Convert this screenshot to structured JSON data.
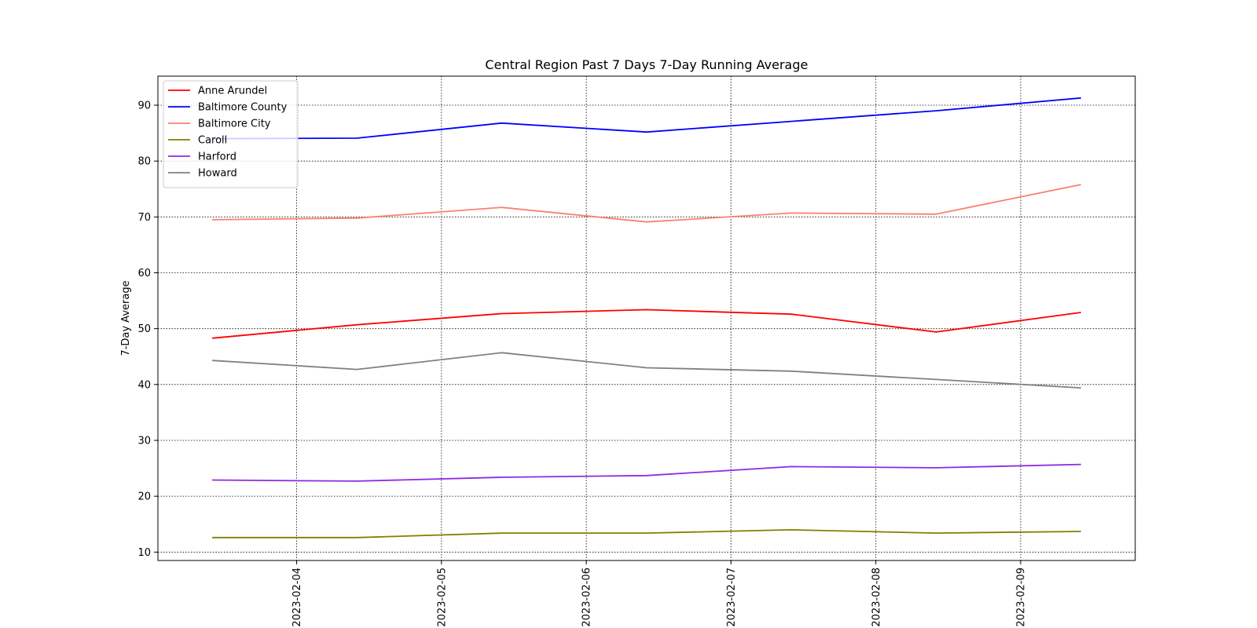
{
  "chart_data": {
    "type": "line",
    "title": "Central Region Past 7 Days 7-Day Running Average",
    "xlabel": "",
    "ylabel": "7-Day Average",
    "x": [
      "2023-02-03 10:00",
      "2023-02-04 10:00",
      "2023-02-05 10:00",
      "2023-02-06 10:00",
      "2023-02-07 10:00",
      "2023-02-08 10:00",
      "2023-02-09 10:00"
    ],
    "xticks": [
      "2023-02-04",
      "2023-02-05",
      "2023-02-06",
      "2023-02-07",
      "2023-02-08",
      "2023-02-09"
    ],
    "xlim": [
      "2023-02-03 01:00",
      "2023-02-09 19:00"
    ],
    "ylim": [
      8.5,
      95.2
    ],
    "yticks": [
      10,
      20,
      30,
      40,
      50,
      60,
      70,
      80,
      90
    ],
    "grid": true,
    "grid_style": "dotted",
    "legend_position": "upper-left",
    "series": [
      {
        "name": "Anne Arundel",
        "color": "#ff0000",
        "values": [
          48.3,
          50.7,
          52.7,
          53.4,
          52.6,
          49.4,
          52.9
        ]
      },
      {
        "name": "Baltimore County",
        "color": "#0000ff",
        "values": [
          84.0,
          84.1,
          86.8,
          85.2,
          87.1,
          89.0,
          91.3
        ]
      },
      {
        "name": "Baltimore City",
        "color": "#fa8072",
        "values": [
          69.5,
          69.8,
          71.7,
          69.1,
          70.7,
          70.5,
          75.8
        ]
      },
      {
        "name": "Caroll",
        "color": "#808000",
        "values": [
          12.6,
          12.6,
          13.4,
          13.4,
          14.0,
          13.4,
          13.7
        ]
      },
      {
        "name": "Harford",
        "color": "#8a2be2",
        "values": [
          22.9,
          22.7,
          23.4,
          23.7,
          25.3,
          25.1,
          25.7
        ]
      },
      {
        "name": "Howard",
        "color": "#808080",
        "values": [
          44.3,
          42.7,
          45.7,
          43.0,
          42.4,
          40.9,
          39.4
        ]
      }
    ]
  }
}
